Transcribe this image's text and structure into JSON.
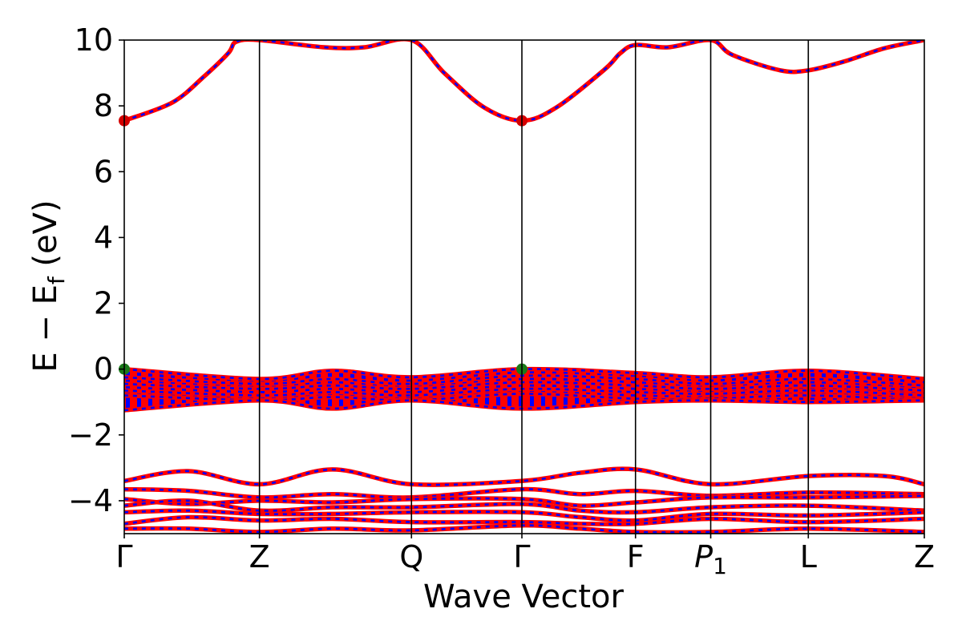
{
  "chart_data": {
    "type": "line",
    "title": "",
    "xlabel": "Wave Vector",
    "ylabel": "E − E",
    "ylabel_subscript": "f",
    "ylabel_unit": " (eV)",
    "ylim": [
      -5,
      10
    ],
    "yticks": [
      -4,
      -2,
      0,
      2,
      4,
      6,
      8,
      10
    ],
    "ytick_labels": [
      "−4",
      "−2",
      "0",
      "2",
      "4",
      "6",
      "8",
      "10"
    ],
    "kpoints": [
      {
        "label": "Γ",
        "x": 0
      },
      {
        "label": "Z",
        "x": 0.169
      },
      {
        "label": "Q",
        "x": 0.359
      },
      {
        "label": "Γ",
        "x": 0.497
      },
      {
        "label": "F",
        "x": 0.639
      },
      {
        "label": "P",
        "sub": "1",
        "x": 0.733
      },
      {
        "label": "L",
        "x": 0.855
      },
      {
        "label": "Z",
        "x": 1.0
      }
    ],
    "series_colors": {
      "spin_up": "#ff0000",
      "spin_down": "#0000ff"
    },
    "conduction_bands": [
      [
        [
          0,
          7.55
        ],
        [
          0.06,
          8.1
        ],
        [
          0.1,
          8.9
        ],
        [
          0.13,
          9.6
        ],
        [
          0.14,
          9.95
        ],
        [
          0.169,
          10.0
        ],
        [
          0.25,
          9.78
        ],
        [
          0.3,
          9.78
        ],
        [
          0.359,
          10.0
        ],
        [
          0.4,
          9.0
        ],
        [
          0.45,
          7.95
        ],
        [
          0.497,
          7.55
        ],
        [
          0.54,
          7.95
        ],
        [
          0.6,
          9.1
        ],
        [
          0.62,
          9.6
        ],
        [
          0.639,
          9.85
        ],
        [
          0.68,
          9.78
        ],
        [
          0.733,
          10.0
        ],
        [
          0.76,
          9.55
        ],
        [
          0.82,
          9.08
        ],
        [
          0.855,
          9.08
        ],
        [
          0.9,
          9.35
        ],
        [
          0.95,
          9.75
        ],
        [
          1.0,
          10.0
        ]
      ]
    ],
    "valence_bands": [
      [
        [
          0,
          0.0
        ],
        [
          0.169,
          -0.3
        ],
        [
          0.26,
          -0.05
        ],
        [
          0.359,
          -0.25
        ],
        [
          0.497,
          0.0
        ],
        [
          0.639,
          -0.12
        ],
        [
          0.733,
          -0.25
        ],
        [
          0.855,
          -0.05
        ],
        [
          1.0,
          -0.3
        ]
      ],
      [
        [
          0,
          -0.25
        ],
        [
          0.169,
          -0.45
        ],
        [
          0.26,
          -0.3
        ],
        [
          0.359,
          -0.45
        ],
        [
          0.497,
          -0.2
        ],
        [
          0.639,
          -0.3
        ],
        [
          0.733,
          -0.45
        ],
        [
          0.855,
          -0.3
        ],
        [
          1.0,
          -0.5
        ]
      ],
      [
        [
          0,
          -0.45
        ],
        [
          0.169,
          -0.6
        ],
        [
          0.26,
          -0.5
        ],
        [
          0.359,
          -0.6
        ],
        [
          0.497,
          -0.4
        ],
        [
          0.639,
          -0.5
        ],
        [
          0.733,
          -0.6
        ],
        [
          0.855,
          -0.5
        ],
        [
          1.0,
          -0.65
        ]
      ],
      [
        [
          0,
          -0.65
        ],
        [
          0.169,
          -0.8
        ],
        [
          0.26,
          -0.7
        ],
        [
          0.359,
          -0.8
        ],
        [
          0.497,
          -0.6
        ],
        [
          0.639,
          -0.7
        ],
        [
          0.733,
          -0.75
        ],
        [
          0.855,
          -0.65
        ],
        [
          1.0,
          -0.8
        ]
      ],
      [
        [
          0,
          -0.8
        ],
        [
          0.169,
          -0.95
        ],
        [
          0.26,
          -0.85
        ],
        [
          0.359,
          -0.95
        ],
        [
          0.497,
          -0.75
        ],
        [
          0.639,
          -0.9
        ],
        [
          0.733,
          -0.9
        ],
        [
          0.855,
          -0.8
        ],
        [
          1.0,
          -0.95
        ]
      ],
      [
        [
          0,
          -1.25
        ],
        [
          0.169,
          -0.95
        ],
        [
          0.26,
          -1.2
        ],
        [
          0.359,
          -0.95
        ],
        [
          0.497,
          -1.2
        ],
        [
          0.639,
          -1.0
        ],
        [
          0.733,
          -0.95
        ],
        [
          0.855,
          -1.0
        ],
        [
          1.0,
          -0.95
        ]
      ]
    ],
    "lower_bands": [
      [
        [
          0,
          -3.4
        ],
        [
          0.08,
          -3.1
        ],
        [
          0.169,
          -3.5
        ],
        [
          0.26,
          -3.05
        ],
        [
          0.359,
          -3.5
        ],
        [
          0.497,
          -3.4
        ],
        [
          0.57,
          -3.15
        ],
        [
          0.639,
          -3.05
        ],
        [
          0.733,
          -3.5
        ],
        [
          0.855,
          -3.25
        ],
        [
          0.95,
          -3.25
        ],
        [
          1.0,
          -3.5
        ]
      ],
      [
        [
          0,
          -3.65
        ],
        [
          0.08,
          -3.7
        ],
        [
          0.169,
          -3.9
        ],
        [
          0.26,
          -3.8
        ],
        [
          0.359,
          -3.9
        ],
        [
          0.497,
          -3.65
        ],
        [
          0.57,
          -3.8
        ],
        [
          0.639,
          -3.7
        ],
        [
          0.733,
          -3.85
        ],
        [
          0.855,
          -3.75
        ],
        [
          1.0,
          -3.8
        ]
      ],
      [
        [
          0,
          -3.95
        ],
        [
          0.08,
          -4.1
        ],
        [
          0.169,
          -4.0
        ],
        [
          0.26,
          -4.05
        ],
        [
          0.359,
          -3.95
        ],
        [
          0.497,
          -3.95
        ],
        [
          0.57,
          -4.15
        ],
        [
          0.639,
          -4.05
        ],
        [
          0.733,
          -3.9
        ],
        [
          0.855,
          -3.9
        ],
        [
          1.0,
          -3.85
        ]
      ],
      [
        [
          0,
          -4.15
        ],
        [
          0.08,
          -4.0
        ],
        [
          0.169,
          -4.3
        ],
        [
          0.26,
          -4.2
        ],
        [
          0.359,
          -4.2
        ],
        [
          0.497,
          -4.1
        ],
        [
          0.57,
          -4.3
        ],
        [
          0.639,
          -4.35
        ],
        [
          0.733,
          -4.2
        ],
        [
          0.855,
          -4.15
        ],
        [
          1.0,
          -4.3
        ]
      ],
      [
        [
          0,
          -4.35
        ],
        [
          0.08,
          -4.3
        ],
        [
          0.169,
          -4.4
        ],
        [
          0.26,
          -4.4
        ],
        [
          0.359,
          -4.35
        ],
        [
          0.497,
          -4.35
        ],
        [
          0.57,
          -4.5
        ],
        [
          0.639,
          -4.6
        ],
        [
          0.733,
          -4.4
        ],
        [
          0.855,
          -4.45
        ],
        [
          1.0,
          -4.35
        ]
      ],
      [
        [
          0,
          -4.7
        ],
        [
          0.08,
          -4.5
        ],
        [
          0.169,
          -4.6
        ],
        [
          0.26,
          -4.55
        ],
        [
          0.359,
          -4.65
        ],
        [
          0.497,
          -4.65
        ],
        [
          0.57,
          -4.7
        ],
        [
          0.639,
          -4.7
        ],
        [
          0.733,
          -4.55
        ],
        [
          0.855,
          -4.65
        ],
        [
          1.0,
          -4.55
        ]
      ],
      [
        [
          0,
          -4.85
        ],
        [
          0.08,
          -4.85
        ],
        [
          0.169,
          -4.95
        ],
        [
          0.26,
          -4.85
        ],
        [
          0.359,
          -4.9
        ],
        [
          0.497,
          -4.75
        ],
        [
          0.57,
          -4.85
        ],
        [
          0.639,
          -4.95
        ],
        [
          0.733,
          -4.95
        ],
        [
          0.855,
          -4.85
        ],
        [
          1.0,
          -4.95
        ]
      ]
    ],
    "markers": [
      {
        "name": "cbm",
        "color": "#d40000",
        "points": [
          [
            0,
            7.55
          ],
          [
            0.497,
            7.55
          ]
        ]
      },
      {
        "name": "vbm",
        "color": "#1a7a1a",
        "points": [
          [
            0,
            0.0
          ],
          [
            0.497,
            0.0
          ]
        ]
      }
    ],
    "grid": false,
    "legend": "none"
  }
}
